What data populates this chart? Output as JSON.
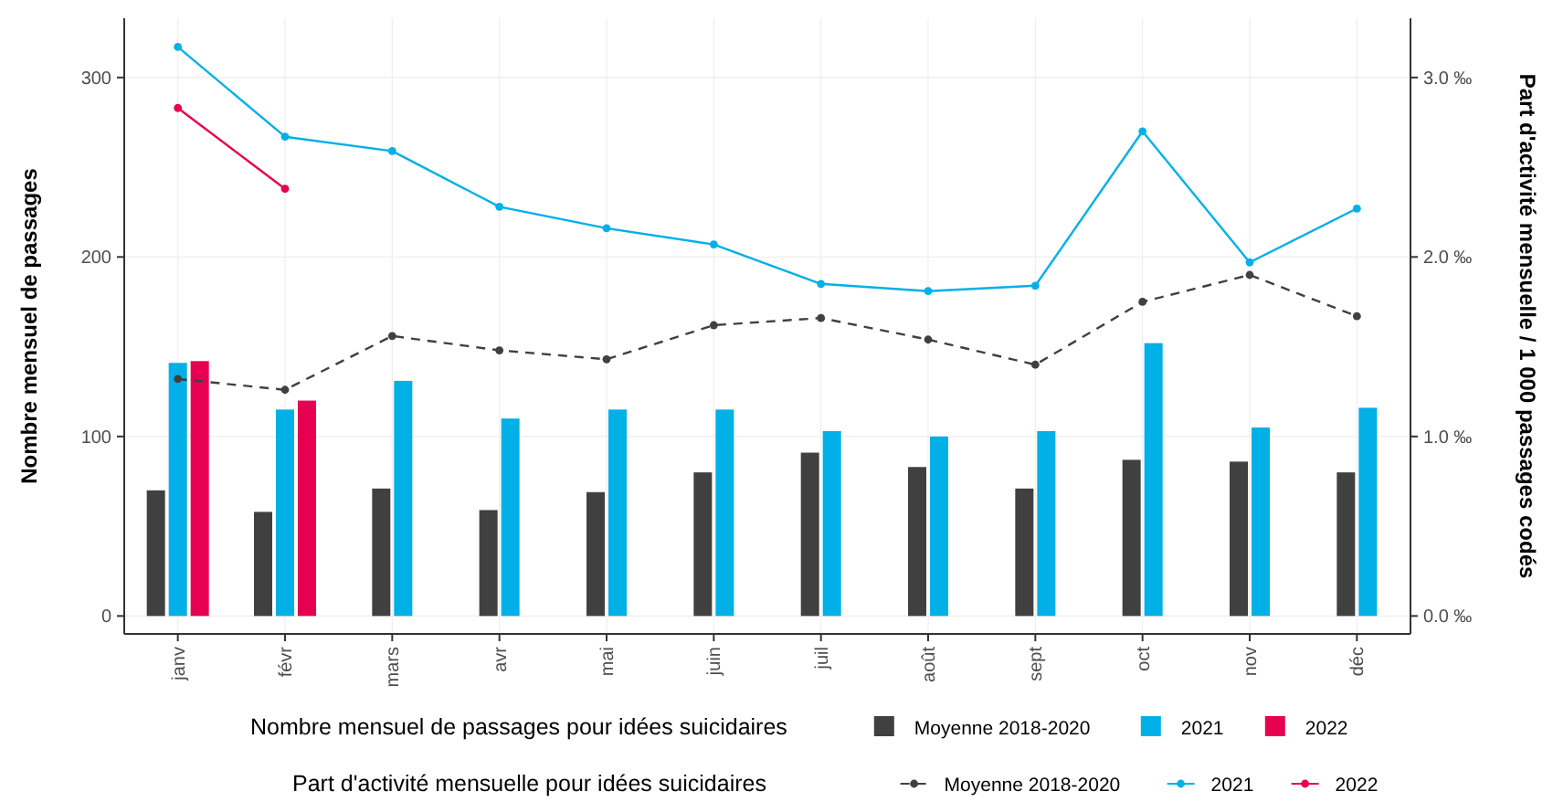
{
  "chart_data": {
    "type": "bar",
    "ylabel": "Nombre mensuel de passages",
    "y2label": "Part d'activité mensuelle / 1 000 passages codés",
    "legend_title": "Nombre mensuel de passages pour idées suicidaires",
    "annotations": [
      "Part d'activité mensuelle pour idées suicidaires"
    ],
    "categories": [
      "janv",
      "févr",
      "mars",
      "avr",
      "mai",
      "juin",
      "juil",
      "août",
      "sept",
      "oct",
      "nov",
      "déc"
    ],
    "ylim": [
      -10,
      333
    ],
    "yticks": [
      0,
      100,
      200,
      300
    ],
    "y2lim": [
      -0.1,
      3.33
    ],
    "y2ticks": [
      {
        "value": 0,
        "label": "0.0 ‰"
      },
      {
        "value": 1,
        "label": "1.0 ‰"
      },
      {
        "value": 2,
        "label": "2.0 ‰"
      },
      {
        "value": 3,
        "label": "3.0 ‰"
      }
    ],
    "grid": true,
    "legend": "bottom",
    "series": [
      {
        "name": "Moyenne 2018-2020",
        "color": "#404040",
        "values": [
          70,
          58,
          71,
          59,
          69,
          80,
          91,
          83,
          71,
          87,
          86,
          80
        ]
      },
      {
        "name": "2021",
        "color": "#00b0e6",
        "values": [
          141,
          115,
          131,
          110,
          115,
          115,
          103,
          100,
          103,
          152,
          105,
          116
        ]
      },
      {
        "name": "2022",
        "color": "#e6004f",
        "values": [
          142,
          120,
          null,
          null,
          null,
          null,
          null,
          null,
          null,
          null,
          null,
          null
        ]
      },
      {
        "name": "Moyenne 2018-2020",
        "type": "line",
        "axis": "y2",
        "color": "#404040",
        "marker": "circle",
        "line_style": "dashed",
        "values": [
          1.32,
          1.26,
          1.56,
          1.48,
          1.43,
          1.62,
          1.66,
          1.54,
          1.4,
          1.75,
          1.9,
          1.67
        ]
      },
      {
        "name": "2021",
        "type": "line",
        "axis": "y2",
        "color": "#00b0e6",
        "marker": "circle",
        "line_style": "solid",
        "values": [
          3.17,
          2.67,
          2.59,
          2.28,
          2.16,
          2.07,
          1.85,
          1.81,
          1.84,
          2.7,
          1.97,
          2.27
        ]
      },
      {
        "name": "2022",
        "type": "line",
        "axis": "y2",
        "color": "#e6004f",
        "marker": "circle",
        "line_style": "solid",
        "values": [
          2.83,
          2.38,
          null,
          null,
          null,
          null,
          null,
          null,
          null,
          null,
          null,
          null
        ]
      }
    ]
  }
}
